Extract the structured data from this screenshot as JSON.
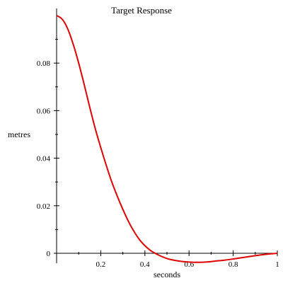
{
  "chart_data": {
    "type": "line",
    "title": "Target Response",
    "xlabel": "seconds",
    "ylabel": "metres",
    "xlim": [
      0,
      1
    ],
    "ylim": [
      -0.004,
      0.1
    ],
    "grid": false,
    "x_ticks": [
      {
        "value": 0.2,
        "label": "0.2"
      },
      {
        "value": 0.4,
        "label": "0.4"
      },
      {
        "value": 0.6,
        "label": "0.6"
      },
      {
        "value": 0.8,
        "label": "0.8"
      },
      {
        "value": 1.0,
        "label": "1"
      }
    ],
    "y_ticks": [
      {
        "value": 0.0,
        "label": "0"
      },
      {
        "value": 0.02,
        "label": "0.02"
      },
      {
        "value": 0.04,
        "label": "0.04"
      },
      {
        "value": 0.06,
        "label": "0.06"
      },
      {
        "value": 0.08,
        "label": "0.08"
      }
    ],
    "series": [
      {
        "color": "#e00000",
        "x": [
          0.0,
          0.025,
          0.05,
          0.075,
          0.1,
          0.125,
          0.15,
          0.175,
          0.2,
          0.225,
          0.25,
          0.275,
          0.3,
          0.325,
          0.35,
          0.375,
          0.4,
          0.425,
          0.45,
          0.475,
          0.5,
          0.525,
          0.55,
          0.575,
          0.6,
          0.625,
          0.65,
          0.675,
          0.7,
          0.725,
          0.75,
          0.8,
          0.85,
          0.9,
          0.95,
          1.0
        ],
        "values": [
          0.1,
          0.0985,
          0.0945,
          0.088,
          0.08,
          0.071,
          0.0615,
          0.0525,
          0.0445,
          0.037,
          0.03,
          0.024,
          0.0185,
          0.0135,
          0.0093,
          0.0058,
          0.0032,
          0.0012,
          -0.0002,
          -0.0013,
          -0.0022,
          -0.0028,
          -0.0032,
          -0.0035,
          -0.0037,
          -0.0038,
          -0.0038,
          -0.0037,
          -0.0035,
          -0.0032,
          -0.003,
          -0.0024,
          -0.0017,
          -0.001,
          -0.0004,
          0.0
        ]
      }
    ]
  }
}
